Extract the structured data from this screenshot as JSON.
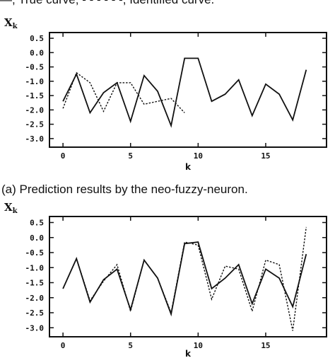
{
  "header_text": "—, True curve; - - - - - -, Identified curve.",
  "chart_data": [
    {
      "type": "line",
      "caption": "(a) Prediction results by the neo-fuzzy-neuron.",
      "ylabel": "X_k",
      "xlabel": "k",
      "xlim": [
        -1,
        19.5
      ],
      "ylim": [
        -3.3,
        0.7
      ],
      "x_ticks": [
        0,
        5,
        10,
        15
      ],
      "y_ticks": [
        0.5,
        0.0,
        -0.5,
        -1.0,
        -1.5,
        -2.0,
        -2.5,
        -3.0
      ],
      "series": [
        {
          "style": "solid",
          "x": [
            0,
            1,
            2,
            3,
            4,
            5,
            6,
            7,
            8,
            9,
            10,
            11,
            12,
            13,
            14,
            15,
            16,
            17,
            18,
            19
          ],
          "y": [
            -1.7,
            -0.75,
            -2.1,
            -1.4,
            -1.05,
            -2.4,
            -0.8,
            -1.35,
            -2.55,
            -0.2,
            -0.2,
            -1.7,
            -1.45,
            -0.95,
            -2.2,
            -1.1,
            -1.45,
            -2.35,
            -0.6,
            null
          ]
        },
        {
          "style": "dashed",
          "x": [
            0,
            1,
            2,
            3,
            4,
            5,
            6,
            7,
            8,
            9
          ],
          "y": [
            -1.95,
            -0.7,
            -1.05,
            -2.05,
            -1.05,
            -1.05,
            -1.8,
            -1.7,
            -1.6,
            -2.1
          ]
        }
      ]
    },
    {
      "type": "line",
      "caption": "",
      "ylabel": "X_k",
      "xlabel": "k",
      "xlim": [
        -1,
        19.5
      ],
      "ylim": [
        -3.3,
        0.7
      ],
      "x_ticks": [
        0,
        5,
        10,
        15
      ],
      "y_ticks": [
        0.5,
        0.0,
        -0.5,
        -1.0,
        -1.5,
        -2.0,
        -2.5,
        -3.0
      ],
      "series": [
        {
          "style": "solid",
          "x": [
            0,
            1,
            2,
            3,
            4,
            5,
            6,
            7,
            8,
            9,
            10,
            11,
            12,
            13,
            14,
            15,
            16,
            17,
            18,
            19
          ],
          "y": [
            -1.7,
            -0.7,
            -2.15,
            -1.4,
            -1.05,
            -2.4,
            -0.75,
            -1.35,
            -2.55,
            -0.2,
            -0.15,
            -1.7,
            -1.35,
            -0.9,
            -2.2,
            -1.05,
            -1.35,
            -2.3,
            -0.55,
            null
          ]
        },
        {
          "style": "dashed",
          "x": [
            0,
            1,
            2,
            3,
            4,
            5,
            6,
            7,
            8,
            9,
            10,
            11,
            12,
            13,
            14,
            15,
            16,
            17,
            18,
            19
          ],
          "y": [
            -1.7,
            -0.7,
            -2.1,
            -1.45,
            -0.9,
            -2.45,
            -0.75,
            -1.35,
            -2.5,
            -0.15,
            -0.25,
            -2.05,
            -0.95,
            -1.05,
            -2.45,
            -0.75,
            -0.9,
            -3.1,
            0.35,
            null
          ]
        }
      ]
    }
  ]
}
